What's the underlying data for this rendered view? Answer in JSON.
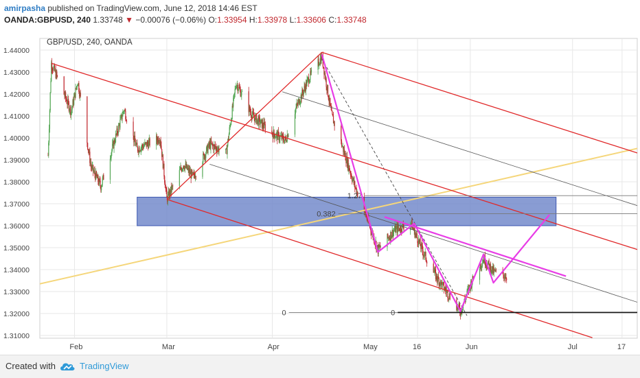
{
  "header": {
    "author": "amirpasha",
    "published_text": "published on TradingView.com, June 12, 2018 14:46 EST",
    "symbol": "OANDA:GBPUSD, 240",
    "last": "1.33748",
    "arrow": "▼",
    "change": "−0.00076 (−0.06%)",
    "o_label": "O:",
    "o": "1.33954",
    "h_label": "H:",
    "h": "1.33978",
    "l_label": "L:",
    "l": "1.33606",
    "c_label": "C:",
    "c": "1.33748"
  },
  "footer": {
    "created_with": "Created with",
    "brand": "TradingView",
    "icon": "tradingview-cloud-icon"
  },
  "colors": {
    "up": "#53a653",
    "down": "#c0272d",
    "red_line": "#e0292a",
    "magenta": "#e83ce6",
    "yellow": "#f5d67a",
    "zone": "#6f86c9",
    "grid": "#e7e7e7"
  },
  "chart_data": {
    "type": "candlestick",
    "title": "GBP/USD, 240, OANDA",
    "x_tick_labels": [
      "Feb",
      "Mar",
      "Apr",
      "May",
      "16",
      "Jun",
      "Jul",
      "17"
    ],
    "y_tick_labels": [
      "1.44000",
      "1.43000",
      "1.42000",
      "1.41000",
      "1.40000",
      "1.39000",
      "1.38000",
      "1.37000",
      "1.36000",
      "1.35000",
      "1.34000",
      "1.33000",
      "1.32000",
      "1.31000"
    ],
    "ylim": [
      1.3075,
      1.4455
    ],
    "price_path": [
      {
        "x": "2018-01-24",
        "y": 1.392
      },
      {
        "x": "2018-01-25",
        "y": 1.434
      },
      {
        "x": "2018-01-31",
        "y": 1.412
      },
      {
        "x": "2018-02-02",
        "y": 1.426
      },
      {
        "x": "2018-02-06",
        "y": 1.387
      },
      {
        "x": "2018-02-09",
        "y": 1.378
      },
      {
        "x": "2018-02-16",
        "y": 1.413
      },
      {
        "x": "2018-02-20",
        "y": 1.395
      },
      {
        "x": "2018-02-27",
        "y": 1.4
      },
      {
        "x": "2018-03-01",
        "y": 1.372
      },
      {
        "x": "2018-03-06",
        "y": 1.388
      },
      {
        "x": "2018-03-09",
        "y": 1.382
      },
      {
        "x": "2018-03-14",
        "y": 1.397
      },
      {
        "x": "2018-03-19",
        "y": 1.393
      },
      {
        "x": "2018-03-22",
        "y": 1.425
      },
      {
        "x": "2018-03-27",
        "y": 1.41
      },
      {
        "x": "2018-04-02",
        "y": 1.402
      },
      {
        "x": "2018-04-06",
        "y": 1.399
      },
      {
        "x": "2018-04-09",
        "y": 1.413
      },
      {
        "x": "2018-04-13",
        "y": 1.427
      },
      {
        "x": "2018-04-17",
        "y": 1.437
      },
      {
        "x": "2018-04-20",
        "y": 1.41
      },
      {
        "x": "2018-04-23",
        "y": 1.397
      },
      {
        "x": "2018-04-27",
        "y": 1.378
      },
      {
        "x": "2018-05-01",
        "y": 1.362
      },
      {
        "x": "2018-05-04",
        "y": 1.349
      },
      {
        "x": "2018-05-09",
        "y": 1.358
      },
      {
        "x": "2018-05-14",
        "y": 1.361
      },
      {
        "x": "2018-05-18",
        "y": 1.347
      },
      {
        "x": "2018-05-22",
        "y": 1.336
      },
      {
        "x": "2018-05-29",
        "y": 1.321
      },
      {
        "x": "2018-06-01",
        "y": 1.333
      },
      {
        "x": "2018-06-05",
        "y": 1.345
      },
      {
        "x": "2018-06-08",
        "y": 1.339
      },
      {
        "x": "2018-06-12",
        "y": 1.337
      }
    ],
    "channel_red": {
      "upper": [
        {
          "x": "2018-01-25",
          "y": 1.434
        },
        {
          "x": "2018-07-24",
          "y": 1.348
        }
      ],
      "lower": [
        {
          "x": "2018-03-01",
          "y": 1.372
        },
        {
          "x": "2018-07-08",
          "y": 1.309
        }
      ],
      "outer": [
        {
          "x": "2018-04-17",
          "y": 1.439
        },
        {
          "x": "2018-07-24",
          "y": 1.392
        }
      ],
      "connector": [
        {
          "x": "2018-03-01",
          "y": 1.372
        },
        {
          "x": "2018-04-17",
          "y": 1.439
        }
      ]
    },
    "gray_lines": [
      [
        {
          "x": "2018-04-05",
          "y": 1.421
        },
        {
          "x": "2018-07-24",
          "y": 1.368
        }
      ],
      [
        {
          "x": "2018-03-14",
          "y": 1.388
        },
        {
          "x": "2018-07-24",
          "y": 1.324
        }
      ]
    ],
    "dashed_line": [
      {
        "x": "2018-04-17",
        "y": 1.436
      },
      {
        "x": "2018-05-31",
        "y": 1.319
      }
    ],
    "yellow_trend": [
      {
        "x": "2018-01-20",
        "y": 1.333
      },
      {
        "x": "2018-07-24",
        "y": 1.396
      }
    ],
    "zone": {
      "x_start": "2018-02-20",
      "x_end": "2018-06-27",
      "y_low": 1.36,
      "y_high": 1.373
    },
    "fib_levels": [
      {
        "label": "1.27",
        "y": 1.3737,
        "x_start": "2018-04-30"
      },
      {
        "label": "0.382",
        "y": 1.3655,
        "x_start": "2018-04-22"
      },
      {
        "label": "0",
        "y": 1.3205,
        "x_start": "2018-04-07"
      },
      {
        "label": "0",
        "y": 1.3205,
        "x_start": "2018-05-10"
      }
    ],
    "magenta_pattern": [
      {
        "x": "2018-04-17",
        "y": 1.438
      },
      {
        "x": "2018-05-04",
        "y": 1.348
      },
      {
        "x": "2018-05-15",
        "y": 1.361
      },
      {
        "x": "2018-05-29",
        "y": 1.321
      },
      {
        "x": "2018-06-05",
        "y": 1.347
      },
      {
        "x": "2018-06-08",
        "y": 1.334
      },
      {
        "x": "2018-06-25",
        "y": 1.365
      }
    ],
    "magenta_trend": [
      {
        "x": "2018-05-06",
        "y": 1.364
      },
      {
        "x": "2018-06-30",
        "y": 1.337
      }
    ]
  }
}
